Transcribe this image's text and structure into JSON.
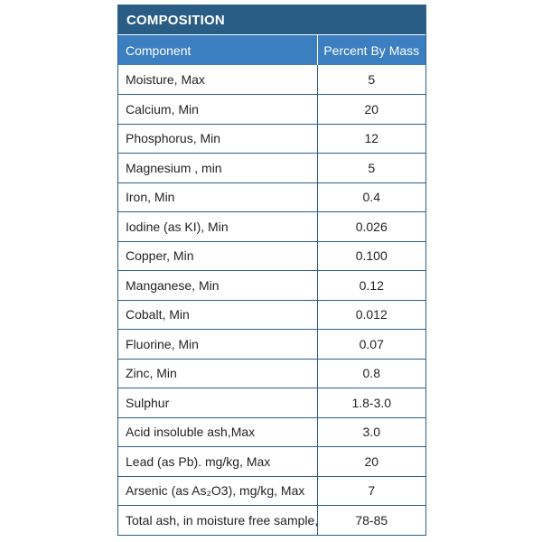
{
  "table": {
    "title": "COMPOSITION",
    "headers": [
      "Component",
      "Percent By Mass"
    ],
    "rows": [
      [
        "Moisture, Max",
        "5"
      ],
      [
        "Calcium, Min",
        "20"
      ],
      [
        "Phosphorus, Min",
        "12"
      ],
      [
        "Magnesium , min",
        "5"
      ],
      [
        "Iron, Min",
        "0.4"
      ],
      [
        "Iodine (as KI), Min",
        "0.026"
      ],
      [
        "Copper, Min",
        "0.100"
      ],
      [
        "Manganese, Min",
        "0.12"
      ],
      [
        "Cobalt, Min",
        "0.012"
      ],
      [
        "Fluorine, Min",
        "0.07"
      ],
      [
        "Zinc, Min",
        "0.8"
      ],
      [
        "Sulphur",
        "1.8-3.0"
      ],
      [
        "Acid insoluble ash,Max",
        "3.0"
      ],
      [
        "Lead (as Pb). mg/kg, Max",
        "20"
      ],
      [
        "Arsenic (as As₂O3), mg/kg, Max",
        "7"
      ],
      [
        "Total ash, in moisture free sample,",
        "78-85"
      ]
    ]
  },
  "colors": {
    "title_bg": "#2a5d86",
    "header_bg": "#3b7fc0",
    "border": "#2c5f8a"
  }
}
